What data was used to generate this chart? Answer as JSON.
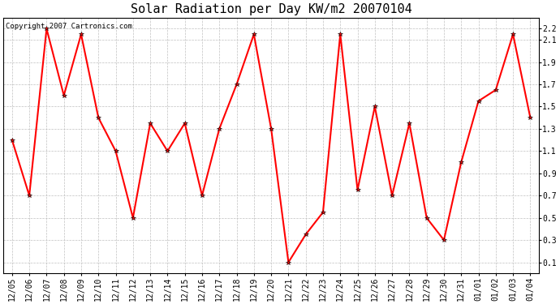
{
  "title": "Solar Radiation per Day KW/m2 20070104",
  "copyright": "Copyright 2007 Cartronics.com",
  "dates": [
    "12/05",
    "12/06",
    "12/07",
    "12/08",
    "12/09",
    "12/10",
    "12/11",
    "12/12",
    "12/13",
    "12/14",
    "12/15",
    "12/16",
    "12/17",
    "12/18",
    "12/19",
    "12/20",
    "12/21",
    "12/22",
    "12/23",
    "12/24",
    "12/25",
    "12/26",
    "12/27",
    "12/28",
    "12/29",
    "12/30",
    "12/31",
    "01/01",
    "01/02",
    "01/03",
    "01/04"
  ],
  "values": [
    1.2,
    0.7,
    2.2,
    1.6,
    2.15,
    1.4,
    1.1,
    0.5,
    1.35,
    1.1,
    1.35,
    0.7,
    1.3,
    1.7,
    2.15,
    1.3,
    0.1,
    0.35,
    0.55,
    2.15,
    0.75,
    1.5,
    0.7,
    1.35,
    0.5,
    0.3,
    1.0,
    1.55,
    1.65,
    2.15,
    1.4
  ],
  "yticks": [
    0.1,
    0.3,
    0.5,
    0.7,
    0.9,
    1.1,
    1.3,
    1.5,
    1.7,
    1.9,
    2.1,
    2.2
  ],
  "ytick_labels": [
    "0.1",
    "0.3",
    "0.5",
    "0.7",
    "0.9",
    "1.1",
    "1.3",
    "1.5",
    "1.7",
    "1.9",
    "2.1",
    "2.2"
  ],
  "ylim": [
    0.0,
    2.3
  ],
  "line_color": "#ff0000",
  "marker": "*",
  "marker_size": 4,
  "bg_color": "#ffffff",
  "plot_bg_color": "#ffffff",
  "grid_color": "#c0c0c0",
  "title_fontsize": 11,
  "tick_fontsize": 7,
  "copyright_fontsize": 6.5
}
